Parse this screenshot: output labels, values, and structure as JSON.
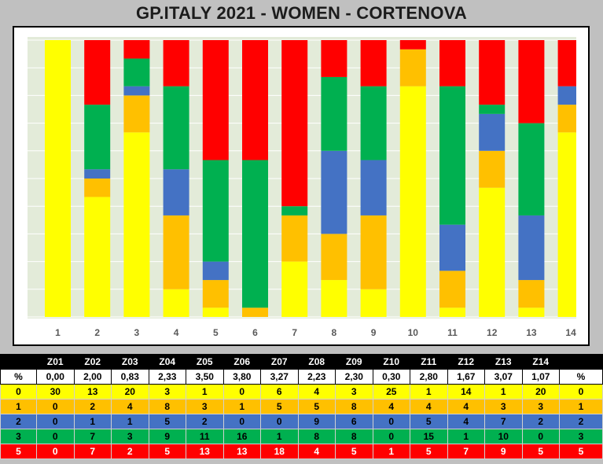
{
  "title": "GP.ITALY 2021 - WOMEN - CORTENOVA",
  "colors": {
    "0": "#ffff00",
    "1": "#ffc000",
    "2": "#4472c4",
    "3": "#00b050",
    "5": "#ff0000",
    "plot_bg": "#e3ebd9",
    "grid": "#ffffff",
    "tick_label": "#595959"
  },
  "chart_data": {
    "type": "bar",
    "stacked": true,
    "normalized": "percent",
    "categories": [
      "1",
      "2",
      "3",
      "4",
      "5",
      "6",
      "7",
      "8",
      "9",
      "10",
      "11",
      "12",
      "13",
      "14"
    ],
    "series": [
      {
        "key": "0",
        "values": [
          30,
          13,
          20,
          3,
          1,
          0,
          6,
          4,
          3,
          25,
          1,
          14,
          1,
          20
        ]
      },
      {
        "key": "1",
        "values": [
          0,
          2,
          4,
          8,
          3,
          1,
          5,
          5,
          8,
          4,
          4,
          4,
          3,
          3
        ]
      },
      {
        "key": "2",
        "values": [
          0,
          1,
          1,
          5,
          2,
          0,
          0,
          9,
          6,
          0,
          5,
          4,
          7,
          2
        ]
      },
      {
        "key": "3",
        "values": [
          0,
          7,
          3,
          9,
          11,
          16,
          1,
          8,
          8,
          0,
          15,
          1,
          10,
          0
        ]
      },
      {
        "key": "5",
        "values": [
          0,
          7,
          2,
          5,
          13,
          13,
          18,
          4,
          5,
          1,
          5,
          7,
          9,
          5
        ]
      }
    ],
    "ylim": [
      0,
      100
    ],
    "grid": true,
    "gridlines": 10
  },
  "table": {
    "header": [
      "",
      "Z01",
      "Z02",
      "Z03",
      "Z04",
      "Z05",
      "Z06",
      "Z07",
      "Z08",
      "Z09",
      "Z10",
      "Z11",
      "Z12",
      "Z13",
      "Z14",
      ""
    ],
    "pct_row": [
      "%",
      "0,00",
      "2,00",
      "0,83",
      "2,33",
      "3,50",
      "3,80",
      "3,27",
      "2,23",
      "2,30",
      "0,30",
      "2,80",
      "1,67",
      "3,07",
      "1,07",
      "%"
    ],
    "rows": [
      {
        "key": "0",
        "cells": [
          "0",
          "30",
          "13",
          "20",
          "3",
          "1",
          "0",
          "6",
          "4",
          "3",
          "25",
          "1",
          "14",
          "1",
          "20",
          "0"
        ]
      },
      {
        "key": "1",
        "cells": [
          "1",
          "0",
          "2",
          "4",
          "8",
          "3",
          "1",
          "5",
          "5",
          "8",
          "4",
          "4",
          "4",
          "3",
          "3",
          "1"
        ]
      },
      {
        "key": "2",
        "cells": [
          "2",
          "0",
          "1",
          "1",
          "5",
          "2",
          "0",
          "0",
          "9",
          "6",
          "0",
          "5",
          "4",
          "7",
          "2",
          "2"
        ]
      },
      {
        "key": "3",
        "cells": [
          "3",
          "0",
          "7",
          "3",
          "9",
          "11",
          "16",
          "1",
          "8",
          "8",
          "0",
          "15",
          "1",
          "10",
          "0",
          "3"
        ]
      },
      {
        "key": "5",
        "cells": [
          "5",
          "0",
          "7",
          "2",
          "5",
          "13",
          "13",
          "18",
          "4",
          "5",
          "1",
          "5",
          "7",
          "9",
          "5",
          "5"
        ]
      }
    ]
  }
}
